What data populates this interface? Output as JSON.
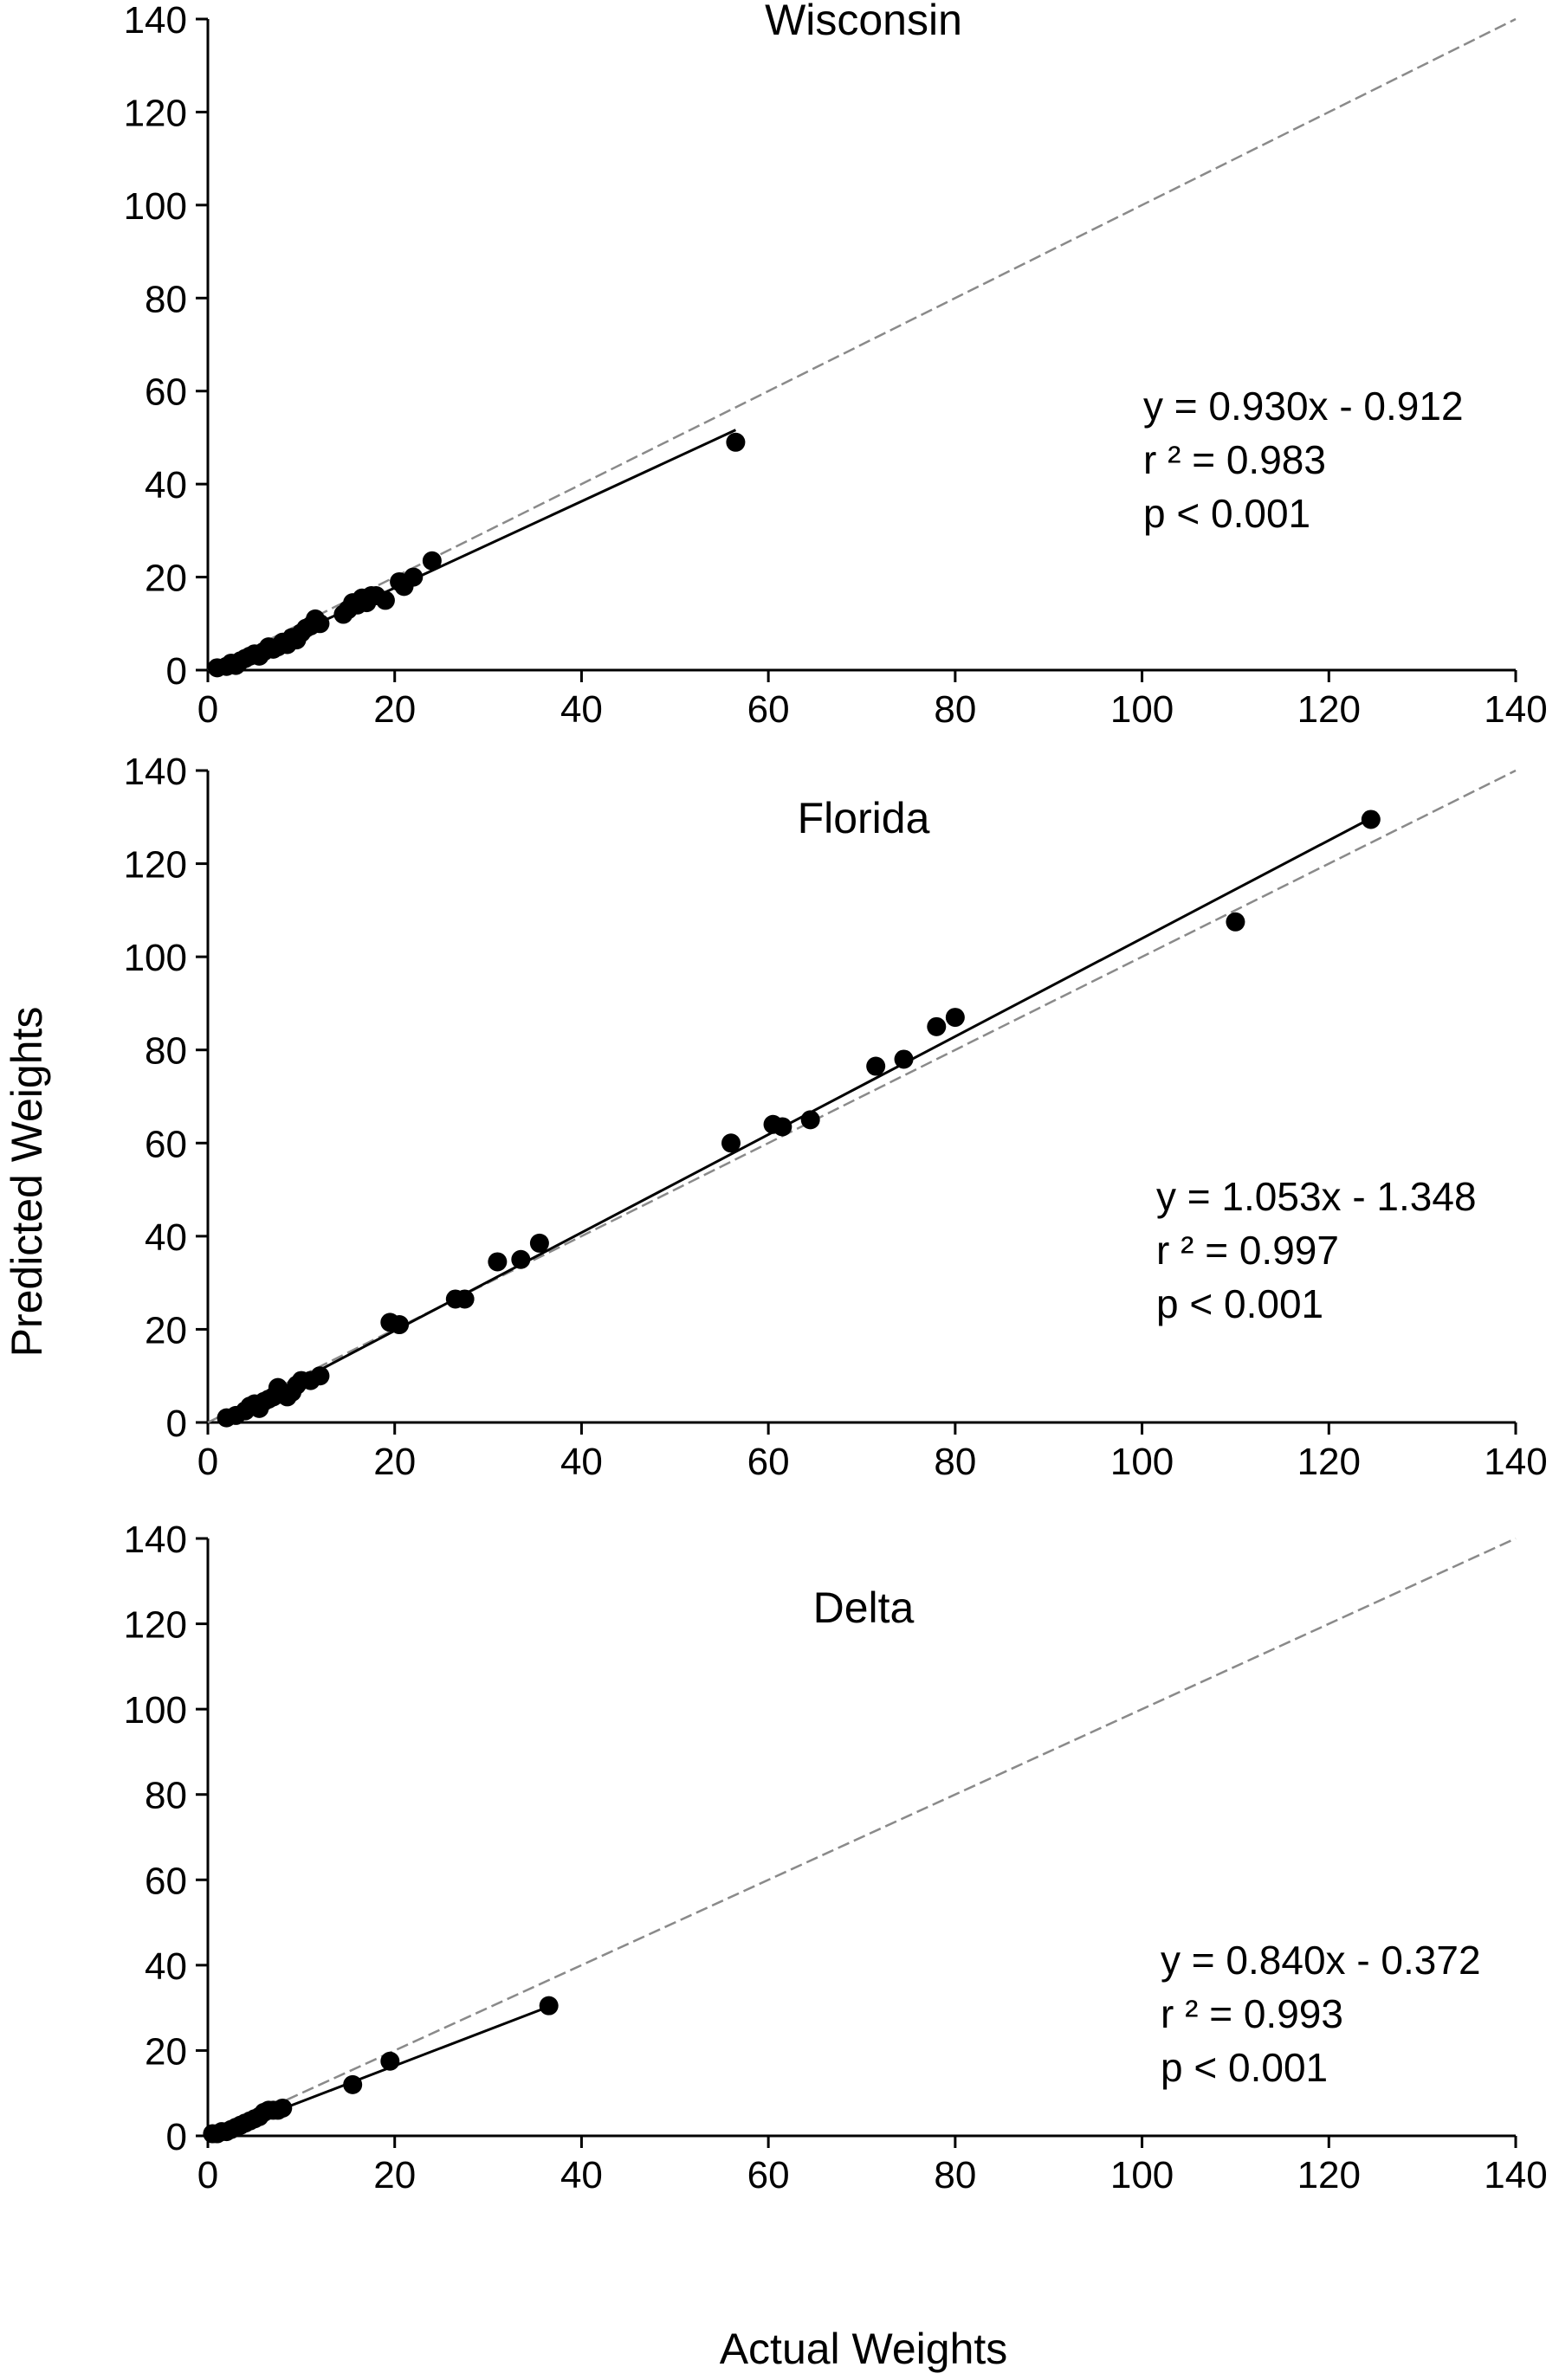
{
  "figure": {
    "ylabel": "Predicted Weights",
    "xlabel": "Actual Weights"
  },
  "chart_data": [
    {
      "type": "scatter",
      "title": "Wisconsin",
      "xlim": [
        0,
        140
      ],
      "ylim": [
        0,
        140
      ],
      "xticks": [
        0,
        20,
        40,
        60,
        80,
        100,
        120,
        140
      ],
      "yticks": [
        0,
        20,
        40,
        60,
        80,
        100,
        120,
        140
      ],
      "equation": "y = 0.930x - 0.912",
      "r2": "r ² = 0.983",
      "p": "p < 0.001",
      "regression": {
        "slope": 0.93,
        "intercept": -0.912,
        "x_range": [
          1,
          56.5
        ]
      },
      "reference_line": {
        "slope": 1,
        "intercept": 0,
        "x_range": [
          0,
          140
        ],
        "style": "dashed"
      },
      "points": [
        [
          1,
          0.5
        ],
        [
          2,
          0.8
        ],
        [
          2.5,
          1.5
        ],
        [
          3,
          1
        ],
        [
          3.5,
          2
        ],
        [
          4,
          2.5
        ],
        [
          4.5,
          3
        ],
        [
          5,
          3.5
        ],
        [
          5.5,
          3
        ],
        [
          6,
          4
        ],
        [
          6.5,
          5
        ],
        [
          7,
          4.5
        ],
        [
          7.5,
          5
        ],
        [
          8,
          6
        ],
        [
          8.5,
          5.5
        ],
        [
          9,
          7
        ],
        [
          9.5,
          6.5
        ],
        [
          10,
          8
        ],
        [
          10.5,
          9
        ],
        [
          11,
          9.5
        ],
        [
          11.5,
          11
        ],
        [
          12,
          10
        ],
        [
          14.5,
          12
        ],
        [
          15,
          13
        ],
        [
          15.5,
          14.5
        ],
        [
          16,
          14
        ],
        [
          16.5,
          15.5
        ],
        [
          17,
          14.5
        ],
        [
          17.5,
          16
        ],
        [
          18,
          16
        ],
        [
          19,
          15
        ],
        [
          20.5,
          19
        ],
        [
          21,
          18
        ],
        [
          22,
          20
        ],
        [
          24,
          23.5
        ],
        [
          56.5,
          49
        ]
      ]
    },
    {
      "type": "scatter",
      "title": "Florida",
      "xlim": [
        0,
        140
      ],
      "ylim": [
        0,
        140
      ],
      "xticks": [
        0,
        20,
        40,
        60,
        80,
        100,
        120,
        140
      ],
      "yticks": [
        0,
        20,
        40,
        60,
        80,
        100,
        120,
        140
      ],
      "equation": "y = 1.053x - 1.348",
      "r2": "r ² = 0.997",
      "p": "p < 0.001",
      "regression": {
        "slope": 1.053,
        "intercept": -1.348,
        "x_range": [
          1.5,
          124.5
        ]
      },
      "reference_line": {
        "slope": 1,
        "intercept": 0,
        "x_range": [
          0,
          140
        ],
        "style": "dashed"
      },
      "points": [
        [
          2,
          1
        ],
        [
          3,
          1.5
        ],
        [
          4,
          2.5
        ],
        [
          4.5,
          3.5
        ],
        [
          5,
          4
        ],
        [
          5.5,
          3
        ],
        [
          6,
          4.5
        ],
        [
          6.5,
          5
        ],
        [
          7,
          5.5
        ],
        [
          7.5,
          7.5
        ],
        [
          8,
          6
        ],
        [
          8.5,
          5.5
        ],
        [
          9,
          6.5
        ],
        [
          9.5,
          8
        ],
        [
          10,
          9
        ],
        [
          11,
          9
        ],
        [
          12,
          10
        ],
        [
          19.5,
          21.5
        ],
        [
          20.5,
          21
        ],
        [
          26.5,
          26.5
        ],
        [
          27.5,
          26.5
        ],
        [
          31,
          34.5
        ],
        [
          33.5,
          35
        ],
        [
          35.5,
          38.5
        ],
        [
          56,
          60
        ],
        [
          60.5,
          64
        ],
        [
          61.5,
          63.5
        ],
        [
          64.5,
          65
        ],
        [
          71.5,
          76.5
        ],
        [
          74.5,
          78
        ],
        [
          78,
          85
        ],
        [
          80,
          87
        ],
        [
          110,
          107.5
        ],
        [
          124.5,
          129.5
        ]
      ]
    },
    {
      "type": "scatter",
      "title": "Delta",
      "xlim": [
        0,
        140
      ],
      "ylim": [
        0,
        140
      ],
      "xticks": [
        0,
        20,
        40,
        60,
        80,
        100,
        120,
        140
      ],
      "yticks": [
        0,
        20,
        40,
        60,
        80,
        100,
        120,
        140
      ],
      "equation": "y = 0.840x - 0.372",
      "r2": "r ² = 0.993",
      "p": "p < 0.001",
      "regression": {
        "slope": 0.84,
        "intercept": -0.372,
        "x_range": [
          0.5,
          36.5
        ]
      },
      "reference_line": {
        "slope": 1,
        "intercept": 0,
        "x_range": [
          0,
          140
        ],
        "style": "dashed"
      },
      "points": [
        [
          0.5,
          0.5
        ],
        [
          1,
          0.5
        ],
        [
          1.5,
          1
        ],
        [
          2,
          1
        ],
        [
          2.5,
          1.5
        ],
        [
          3,
          2
        ],
        [
          3.5,
          2.5
        ],
        [
          4,
          3
        ],
        [
          4.5,
          3.5
        ],
        [
          5,
          4
        ],
        [
          5.5,
          4.5
        ],
        [
          6,
          5.5
        ],
        [
          6.5,
          6
        ],
        [
          7,
          6
        ],
        [
          7.5,
          6
        ],
        [
          8,
          6.5
        ],
        [
          15.5,
          12
        ],
        [
          19.5,
          17.5
        ],
        [
          36.5,
          30.5
        ]
      ]
    }
  ]
}
